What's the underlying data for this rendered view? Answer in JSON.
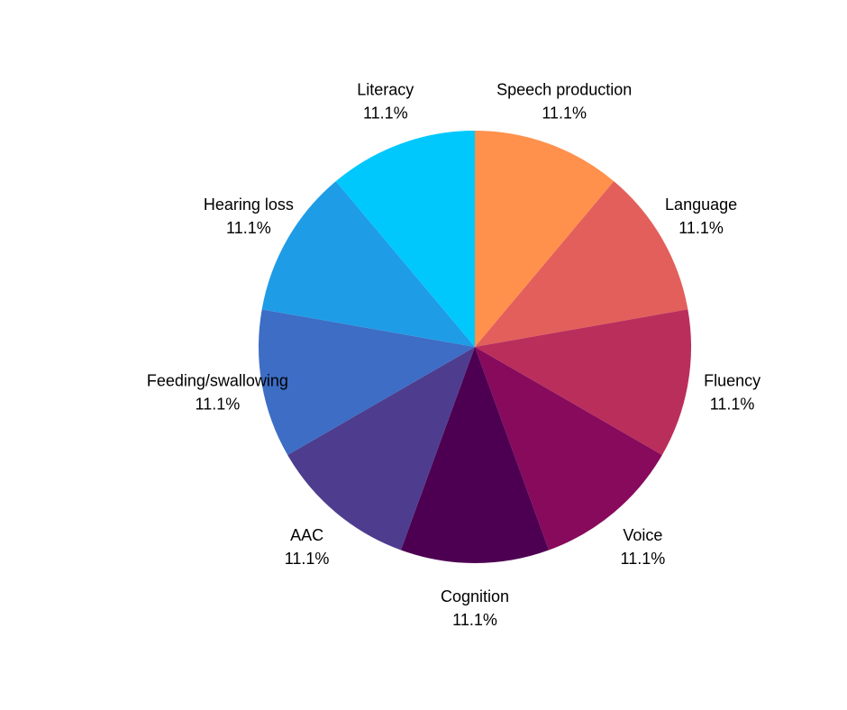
{
  "chart_data": {
    "type": "pie",
    "title": "",
    "slices": [
      {
        "label": "Speech production",
        "value": 11.1,
        "pct_label": "11.1%",
        "color": "#FF914D"
      },
      {
        "label": "Language",
        "value": 11.1,
        "pct_label": "11.1%",
        "color": "#E35F5B"
      },
      {
        "label": "Fluency",
        "value": 11.1,
        "pct_label": "11.1%",
        "color": "#BA2E5C"
      },
      {
        "label": "Voice",
        "value": 11.1,
        "pct_label": "11.1%",
        "color": "#870A5C"
      },
      {
        "label": "Cognition",
        "value": 11.1,
        "pct_label": "11.1%",
        "color": "#4D0052"
      },
      {
        "label": "AAC",
        "value": 11.1,
        "pct_label": "11.1%",
        "color": "#4E3C8E"
      },
      {
        "label": "Feeding/swallowing",
        "value": 11.1,
        "pct_label": "11.1%",
        "color": "#3D6DC5"
      },
      {
        "label": "Hearing loss",
        "value": 11.1,
        "pct_label": "11.1%",
        "color": "#1E9CE6"
      },
      {
        "label": "Literacy",
        "value": 11.1,
        "pct_label": "11.1%",
        "color": "#00C8FC"
      }
    ],
    "start": "12 o'clock",
    "direction": "clockwise",
    "legend": "none"
  }
}
